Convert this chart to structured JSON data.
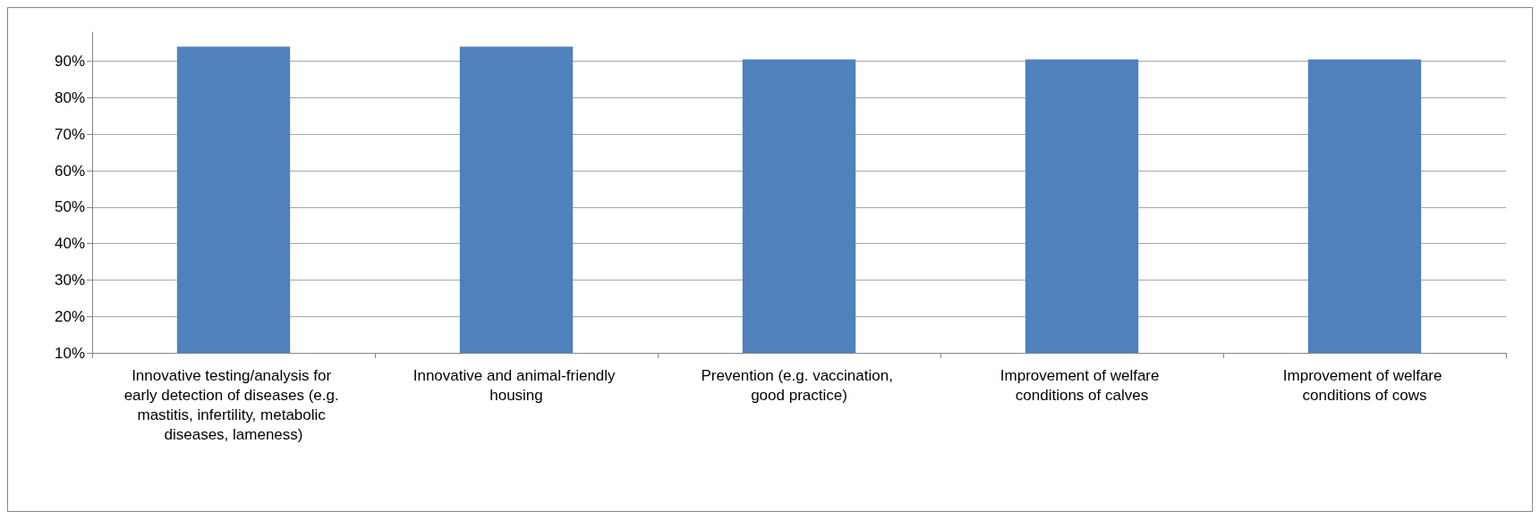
{
  "chart_data": {
    "type": "bar",
    "categories": [
      "Innovative testing/analysis for early detection of diseases (e.g. mastitis, infertility, metabolic diseases, lameness)",
      "Innovative and animal-friendly housing",
      "Prevention (e.g. vaccination, good practice)",
      "Improvement of welfare conditions of calves",
      "Improvement of welfare conditions of cows"
    ],
    "values": [
      94,
      94,
      90.5,
      90.5,
      90.5
    ],
    "color": "#4f81bd",
    "ylim": [
      10,
      98
    ],
    "yticks": [
      {
        "value": 10,
        "label": "10%"
      },
      {
        "value": 20,
        "label": "20%"
      },
      {
        "value": 30,
        "label": "30%"
      },
      {
        "value": 40,
        "label": "40%"
      },
      {
        "value": 50,
        "label": "50%"
      },
      {
        "value": 60,
        "label": "60%"
      },
      {
        "value": 70,
        "label": "70%"
      },
      {
        "value": 80,
        "label": "80%"
      },
      {
        "value": 90,
        "label": "90%"
      }
    ],
    "grid": "y"
  }
}
